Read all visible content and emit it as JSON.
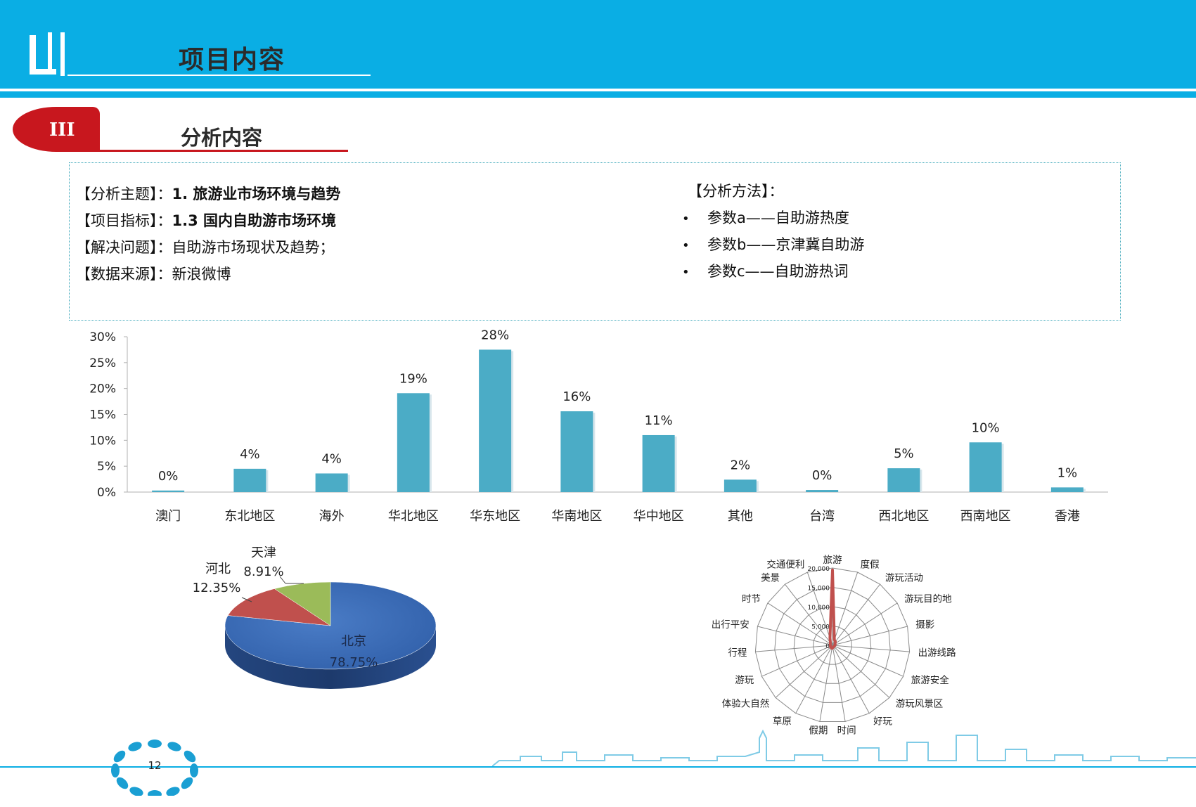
{
  "header": {
    "title": "项目内容",
    "logo": "logo-icon"
  },
  "section": {
    "badge": "III",
    "title": "分析内容"
  },
  "info": {
    "rows": [
      {
        "label": "【分析主题】：",
        "value": "1. 旅游业市场环境与趋势",
        "bold": true
      },
      {
        "label": "【项目指标】：",
        "value": "1.3 国内自助游市场环境",
        "bold": true
      },
      {
        "label": "【解决问题】：",
        "value": "自助游市场现状及趋势；",
        "bold": false
      },
      {
        "label": "【数据来源】：",
        "value": "新浪微博",
        "bold": false
      }
    ],
    "method_title": "【分析方法】：",
    "methods": [
      "参数a——自助游热度",
      "参数b——京津冀自助游",
      "参数c——自助游热词"
    ]
  },
  "colors": {
    "brand": "#0aaee4",
    "accent": "#c8171e",
    "bar": "#4bacc6",
    "radar": "#c0504d",
    "pie_beijing": "#3e6db6",
    "pie_hebei": "#c0504d",
    "pie_tianjin": "#9bbb59"
  },
  "chart_data": [
    {
      "type": "bar",
      "categories": [
        "澳门",
        "东北地区",
        "海外",
        "华北地区",
        "华东地区",
        "华南地区",
        "华中地区",
        "其他",
        "台湾",
        "西北地区",
        "西南地区",
        "香港"
      ],
      "values": [
        0.3,
        4.5,
        3.6,
        19.1,
        27.5,
        15.6,
        11.0,
        2.4,
        0.4,
        4.6,
        9.6,
        0.9
      ],
      "data_labels": [
        "0%",
        "4%",
        "4%",
        "19%",
        "28%",
        "16%",
        "11%",
        "2%",
        "0%",
        "5%",
        "10%",
        "1%"
      ],
      "yticks": [
        "0%",
        "5%",
        "10%",
        "15%",
        "20%",
        "25%",
        "30%"
      ],
      "ylim": [
        0,
        30
      ],
      "grid": false
    },
    {
      "type": "pie",
      "slices": [
        {
          "name": "北京",
          "value": 78.75,
          "label": "78.75%"
        },
        {
          "name": "河北",
          "value": 12.35,
          "label": "12.35%"
        },
        {
          "name": "天津",
          "value": 8.91,
          "label": "8.91%"
        }
      ],
      "style": "3d"
    },
    {
      "type": "radar",
      "axes": [
        "旅游",
        "度假",
        "游玩活动",
        "游玩目的地",
        "摄影",
        "出游线路",
        "旅游安全",
        "游玩风景区",
        "好玩",
        "时间",
        "假期",
        "草原",
        "体验大自然",
        "游玩",
        "行程",
        "出行平安",
        "时节",
        "美景",
        "交通便利"
      ],
      "values": [
        19500,
        1500,
        1200,
        800,
        700,
        600,
        500,
        500,
        500,
        600,
        800,
        700,
        700,
        600,
        500,
        600,
        700,
        900,
        2000
      ],
      "ticks": [
        "0",
        "5,000",
        "10,000",
        "15,000",
        "20,000"
      ],
      "rmax": 20000
    }
  ],
  "footer": {
    "page": "12"
  }
}
